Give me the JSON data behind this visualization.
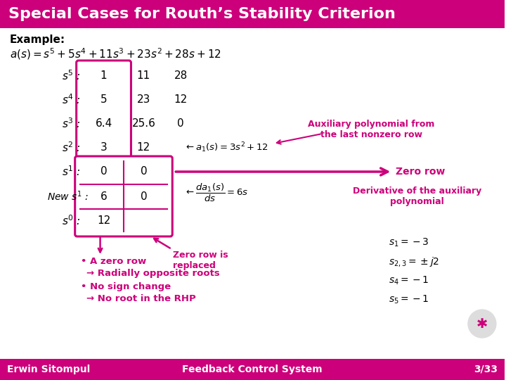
{
  "title": "Special Cases for Routh’s Stability Criterion",
  "title_bg": "#CC007A",
  "title_color": "white",
  "slide_bg": "white",
  "magenta": "#CC007A",
  "footer_left": "Erwin Sitompul",
  "footer_right": "Feedback Control System",
  "footer_page": "3/33"
}
